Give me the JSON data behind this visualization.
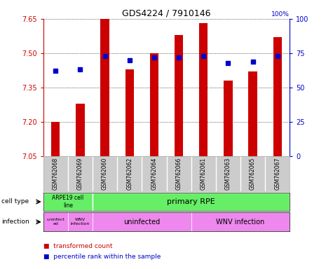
{
  "title": "GDS4224 / 7910146",
  "samples": [
    "GSM762068",
    "GSM762069",
    "GSM762060",
    "GSM762062",
    "GSM762064",
    "GSM762066",
    "GSM762061",
    "GSM762063",
    "GSM762065",
    "GSM762067"
  ],
  "transformed_count": [
    7.2,
    7.28,
    7.65,
    7.43,
    7.5,
    7.58,
    7.63,
    7.38,
    7.42,
    7.57
  ],
  "percentile_rank": [
    62,
    63,
    73,
    70,
    72,
    72,
    73,
    68,
    69,
    73
  ],
  "ylim": [
    7.05,
    7.65
  ],
  "yticks": [
    7.05,
    7.2,
    7.35,
    7.5,
    7.65
  ],
  "right_yticks": [
    0,
    25,
    50,
    75,
    100
  ],
  "right_ylim": [
    0,
    100
  ],
  "bar_color": "#cc0000",
  "dot_color": "#0000cc",
  "bar_width": 0.35,
  "legend_items": [
    {
      "label": "transformed count",
      "color": "#cc0000"
    },
    {
      "label": "percentile rank within the sample",
      "color": "#0000cc"
    }
  ],
  "cell_type_arpe_label": "ARPE19 cell\nline",
  "cell_type_rpe_label": "primary RPE",
  "cell_type_color": "#66ee66",
  "inf_color": "#ee88ee",
  "inf_small1": "uninfect\ned",
  "inf_small2": "WNV\ninfection",
  "inf_mid": "uninfected",
  "inf_large": "WNV infection",
  "row_label_cell": "cell type",
  "row_label_inf": "infection",
  "bg_color": "#ffffff",
  "left_axis_color": "#cc0000",
  "right_axis_color": "#0000cc",
  "sample_bg": "#cccccc"
}
